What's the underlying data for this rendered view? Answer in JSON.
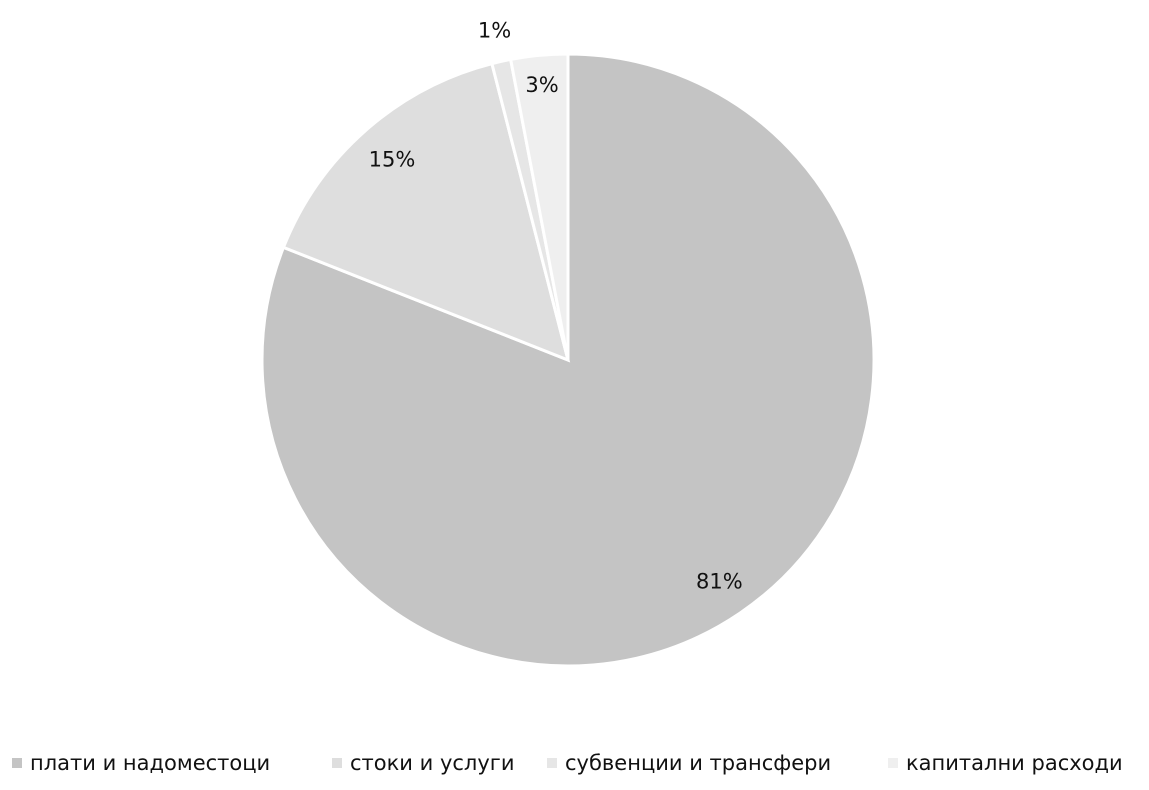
{
  "chart_data": {
    "type": "pie",
    "categories": [
      "плати и надоместоци",
      "стоки и услуги",
      "субвенции и трансфери",
      "капитални расходи"
    ],
    "values": [
      81,
      15,
      1,
      3
    ],
    "value_labels": [
      "81%",
      "15%",
      "1%",
      "3%"
    ],
    "colors": [
      "#c4c4c4",
      "#dedede",
      "#e6e6e6",
      "#efefef"
    ],
    "legend": "bottom"
  }
}
